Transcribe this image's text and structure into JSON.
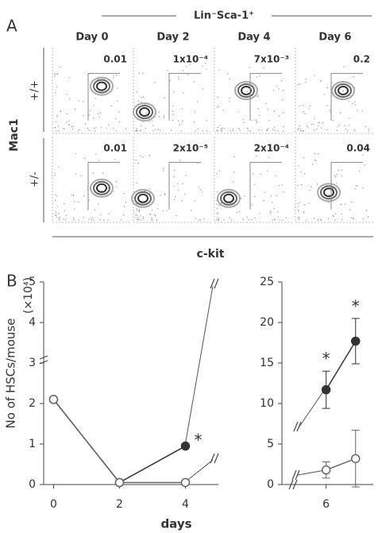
{
  "panel_a": {
    "label": "A",
    "gate_title": "Lin⁻Sca-1⁺",
    "days": [
      "Day 0",
      "Day 2",
      "Day 4",
      "Day 6"
    ],
    "genotypes": [
      "+/+",
      "+/-"
    ],
    "y_axis": "Mac1",
    "x_axis": "c-kit",
    "frequencies": [
      [
        "0.01",
        "1x10⁻⁴",
        "7x10⁻³",
        "0.2"
      ],
      [
        "0.01",
        "2x10⁻⁵",
        "2x10⁻⁴",
        "0.04"
      ]
    ]
  },
  "panel_b": {
    "label": "B",
    "y_axis_label": "No of HSCs/mouse",
    "y_axis_unit": "(×10⁴)",
    "x_axis_label": "days",
    "charts": [
      {
        "type": "line",
        "x": [
          0,
          2,
          4
        ],
        "xlim": [
          -0.3,
          5
        ],
        "xticks": [
          0,
          2,
          4
        ],
        "ylim": [
          0,
          5
        ],
        "yticks": [
          0,
          1,
          2,
          3,
          4,
          5
        ],
        "series": [
          {
            "color": "#333333",
            "fill": "filled",
            "values": [
              2.1,
              0.05,
              0.95
            ]
          },
          {
            "color": "#666666",
            "fill": "open",
            "values": [
              2.1,
              0.05,
              0.05
            ]
          }
        ],
        "annotations": [
          "*"
        ]
      },
      {
        "type": "line",
        "x": [
          6,
          7
        ],
        "xlim": [
          4.5,
          7.6
        ],
        "xticks": [
          6
        ],
        "ylim": [
          0,
          25
        ],
        "yticks": [
          0,
          5,
          10,
          15,
          20,
          25
        ],
        "series": [
          {
            "color": "#333333",
            "fill": "filled",
            "values": [
              11.7,
              17.7
            ],
            "errors": [
              2.3,
              2.8
            ]
          },
          {
            "color": "#666666",
            "fill": "open",
            "values": [
              1.8,
              3.2
            ],
            "errors": [
              1,
              3.5
            ]
          }
        ],
        "annotations": [
          "*",
          "*"
        ]
      }
    ]
  }
}
